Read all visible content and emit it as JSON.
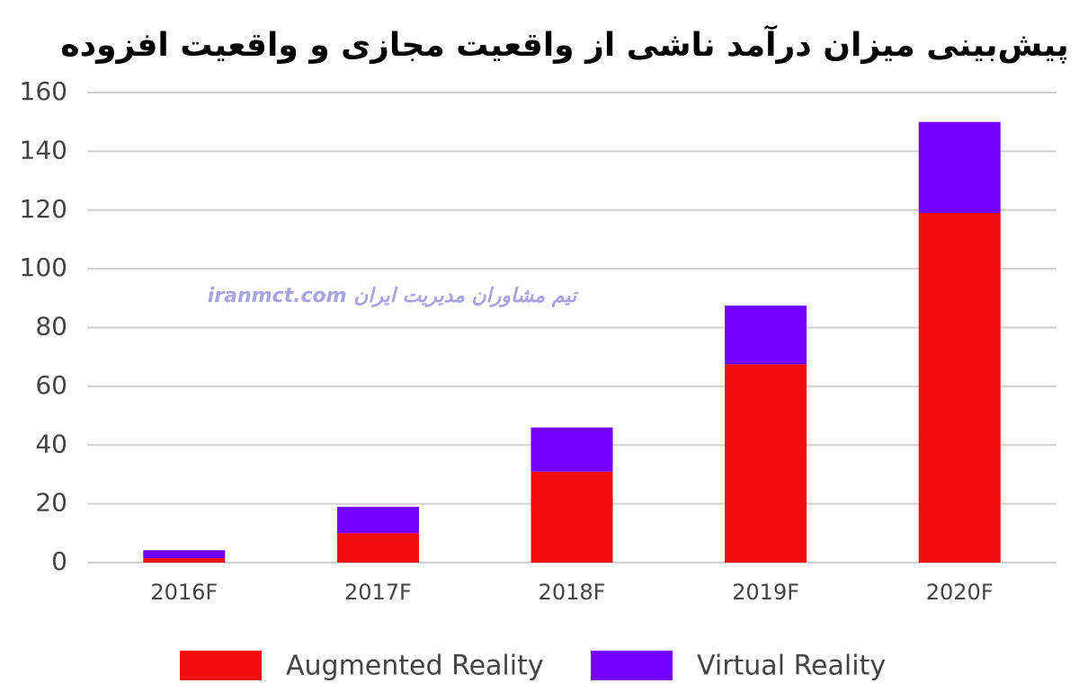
{
  "chart_data": {
    "type": "stacked_bar",
    "title": "پیش‌بینی میزان درآمد ناشی از واقعیت مجازی و واقعیت افزوده",
    "watermark": "iranmct.com  تیم مشاوران مدیریت ایران",
    "categories": [
      "2016F",
      "2017F",
      "2018F",
      "2019F",
      "2020F"
    ],
    "series": [
      {
        "name": "Augmented Reality",
        "color": "#f40b0b",
        "values": [
          1.5,
          10,
          31,
          67.5,
          119
        ]
      },
      {
        "name": "Virtual Reality",
        "color": "#7200ff",
        "values": [
          2.7,
          9,
          15,
          20,
          31
        ]
      }
    ],
    "ylim": [
      0,
      160
    ],
    "yticks": [
      0,
      20,
      40,
      60,
      80,
      100,
      120,
      140,
      160
    ],
    "grid": true
  }
}
